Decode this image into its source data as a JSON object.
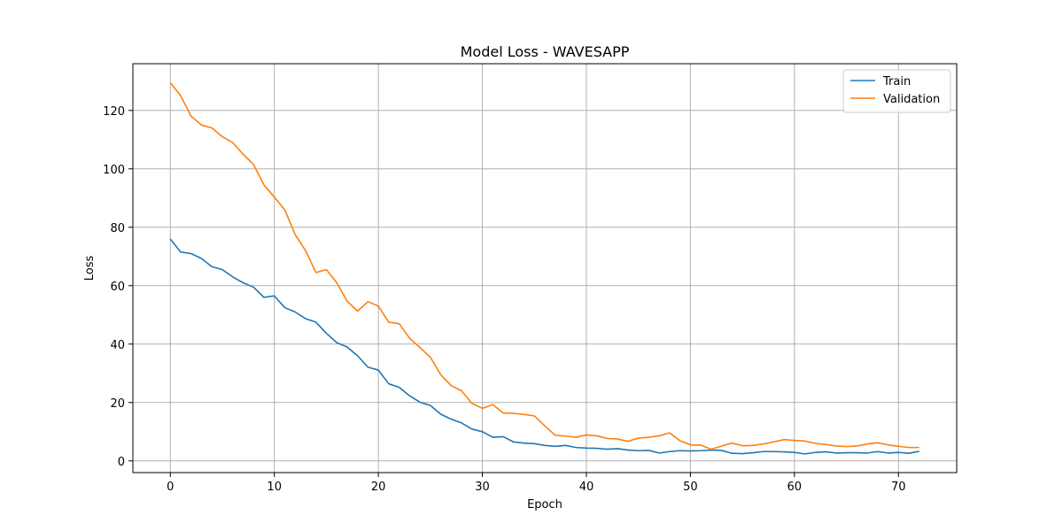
{
  "chart_data": {
    "type": "line",
    "title": "Model Loss - WAVESAPP",
    "xlabel": "Epoch",
    "ylabel": "Loss",
    "xlim": [
      -3.6,
      75.6
    ],
    "ylim": [
      -4,
      136
    ],
    "xticks": [
      0,
      10,
      20,
      30,
      40,
      50,
      60,
      70
    ],
    "yticks": [
      0,
      20,
      40,
      60,
      80,
      100,
      120
    ],
    "grid": true,
    "legend_position": "top-right",
    "x": [
      0,
      1,
      2,
      3,
      4,
      5,
      6,
      7,
      8,
      9,
      10,
      11,
      12,
      13,
      14,
      15,
      16,
      17,
      18,
      19,
      20,
      21,
      22,
      23,
      24,
      25,
      26,
      27,
      28,
      29,
      30,
      31,
      32,
      33,
      34,
      35,
      36,
      37,
      38,
      39,
      40,
      41,
      42,
      43,
      44,
      45,
      46,
      47,
      48,
      49,
      50,
      51,
      52,
      53,
      54,
      55,
      56,
      57,
      58,
      59,
      60,
      61,
      62,
      63,
      64,
      65,
      66,
      67,
      68,
      69,
      70,
      71,
      72
    ],
    "series": [
      {
        "name": "Train",
        "color": "#1f77b4",
        "values": [
          76.0,
          71.5,
          71.0,
          69.3,
          66.5,
          65.5,
          63.0,
          61.0,
          59.5,
          56.0,
          56.5,
          52.5,
          51.0,
          48.7,
          47.5,
          43.7,
          40.5,
          39.0,
          36.0,
          32.1,
          31.1,
          26.4,
          25.2,
          22.3,
          20.1,
          19.0,
          16.0,
          14.3,
          13.0,
          10.9,
          10.0,
          8.1,
          8.3,
          6.5,
          6.1,
          5.9,
          5.3,
          5.0,
          5.3,
          4.6,
          4.4,
          4.3,
          4.0,
          4.2,
          3.7,
          3.5,
          3.6,
          2.7,
          3.2,
          3.5,
          3.4,
          3.5,
          3.7,
          3.6,
          2.6,
          2.5,
          2.8,
          3.2,
          3.2,
          3.1,
          2.9,
          2.4,
          2.9,
          3.1,
          2.7,
          2.8,
          2.8,
          2.7,
          3.2,
          2.7,
          2.9,
          2.6,
          3.3
        ]
      },
      {
        "name": "Validation",
        "color": "#ff7f0e",
        "values": [
          129.5,
          125.0,
          118.0,
          115.0,
          114.0,
          111.0,
          109.0,
          105.0,
          101.5,
          94.5,
          90.3,
          86.0,
          77.5,
          72.0,
          64.5,
          65.5,
          61.0,
          54.7,
          51.3,
          54.5,
          53.0,
          47.5,
          47.0,
          42.0,
          38.8,
          35.5,
          29.5,
          25.8,
          24.0,
          19.7,
          18.0,
          19.3,
          16.4,
          16.3,
          15.9,
          15.4,
          12.0,
          8.8,
          8.5,
          8.1,
          8.9,
          8.6,
          7.7,
          7.5,
          6.7,
          7.8,
          8.1,
          8.6,
          9.6,
          6.9,
          5.5,
          5.4,
          4.0,
          5.1,
          6.1,
          5.2,
          5.3,
          5.8,
          6.5,
          7.3,
          7.0,
          6.8,
          6.0,
          5.6,
          5.1,
          4.9,
          5.1,
          5.8,
          6.2,
          5.5,
          5.0,
          4.6,
          4.6
        ]
      }
    ]
  }
}
